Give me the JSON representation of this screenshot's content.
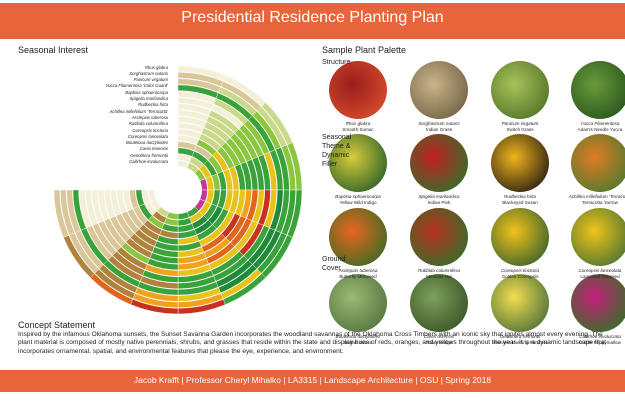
{
  "header": {
    "title": "Presidential Residence Planting Plan"
  },
  "seasonal_interest": {
    "heading": "Seasonal Interest",
    "plants": [
      "Rhus glabra",
      "Sorghastrum nutans",
      "Panicum virgatum",
      "Yucca Filamentosa 'Color Guard'",
      "Baptisia sphaerocarpa",
      "Spigelia marilandica",
      "Rudbeckia hirta",
      "Achillea millefolium 'Terracotta'",
      "Asclepias tuberosa",
      "Ratibida columnifera",
      "Coreopsis tinctoria",
      "Coreopsis lanceolata",
      "Bouteloua dactyloides",
      "Carex texensis",
      "Oenothera fremontii",
      "Callirhoe involucrata"
    ]
  },
  "palette": {
    "heading": "Sample Plant Palette",
    "groups": [
      {
        "label": [
          "Structure"
        ],
        "plants": [
          {
            "latin": "Rhus glabra",
            "common": "Smooth Sumac"
          },
          {
            "latin": "Sorghastrum nutans",
            "common": "Indian Grass"
          },
          {
            "latin": "Panicum virgatum",
            "common": "Switch Grass"
          },
          {
            "latin": "Yucca Filamentosa",
            "common": "Adam's Needle Yucca"
          }
        ]
      },
      {
        "label": [
          "Seasonal",
          "Theme &",
          "Dynamic",
          "Filler"
        ],
        "plants": [
          {
            "latin": "Baptisia sphaerocarpa",
            "common": "Yellow Wild Indigo"
          },
          {
            "latin": "Spigelia marilandica",
            "common": "Indian Pink"
          },
          {
            "latin": "Rudbeckia hirta",
            "common": "Blackeyed Susan"
          },
          {
            "latin": "Achillea millefolium 'Terracotta'",
            "common": "Terracotta Yarrow"
          },
          {
            "latin": "Asclepias tuberosa",
            "common": "Butterfly Milkweed"
          },
          {
            "latin": "Ratibida columnifera",
            "common": "Mexican Hat"
          },
          {
            "latin": "Coreopsis tinctoria",
            "common": "Golden Coreopsis"
          },
          {
            "latin": "Coreopsis lanceolata",
            "common": "Lanceleaf Tickseed"
          }
        ]
      },
      {
        "label": [
          "Ground",
          "Cover"
        ],
        "plants": [
          {
            "latin": "Bouteloua dactyloides",
            "common": "Buffalo Grass"
          },
          {
            "latin": "Carex texensis",
            "common": "Texas Sedge"
          },
          {
            "latin": "Oenothera fremontii",
            "common": "Shimmer Evening Primrose"
          },
          {
            "latin": "Callirhoe involucrata",
            "common": "Purple Poppymallow"
          }
        ]
      }
    ]
  },
  "concept": {
    "heading": "Concept Statement",
    "text": "Inspired by the infamous Oklahoma sunsets, the Sunset Savanna Garden incorporates the woodland savannas of the Oklahoma Cross Timbers with an iconic sky that ignites almost every evening. The plant material is composed of mostly native perennials, shrubs, and grasses that reside within the state and display hues of reds, oranges, and yellows throughout the year. It is a dynamic landscape that incorporates ornamental, spatial, and environmental features that please the eye, experience, and environment."
  },
  "footer": {
    "text": "Jacob Krafft | Professor Cheryl Mihalko | LA3315 | Landscape Architecture | OSU | Spring 2018"
  }
}
